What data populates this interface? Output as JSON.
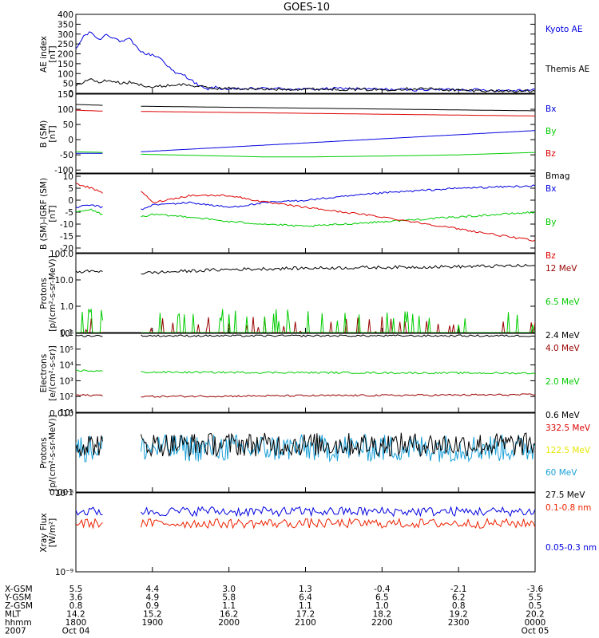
{
  "title": "GOES-10",
  "colors": {
    "black": "#000000",
    "blue": "#0000e0",
    "green": "#00cc00",
    "red": "#dd0000",
    "darkred": "#990000",
    "cyan": "#1aa0d8",
    "yellow": "#e6e600",
    "orange_red": "#ee2200"
  },
  "chart_data": [
    {
      "type": "line",
      "ylabel": "AE index\n[nT]",
      "ylim": [
        0,
        400
      ],
      "yticks": [
        "0",
        "50",
        "100",
        "150",
        "200",
        "250",
        "300",
        "350",
        "400"
      ],
      "series": [
        {
          "name": "Kyoto AE",
          "color": "#0000e0",
          "x": [
            18.0,
            18.1,
            18.2,
            18.3,
            18.4,
            18.5,
            18.6,
            18.7,
            18.8,
            18.9,
            19.0,
            19.1,
            19.2,
            19.3,
            19.4,
            19.5,
            19.6,
            19.7,
            19.8,
            20.0,
            20.5,
            21.0,
            21.5,
            22.0,
            22.5,
            23.0,
            23.5,
            24.0
          ],
          "values": [
            220,
            290,
            310,
            270,
            300,
            280,
            260,
            275,
            230,
            200,
            195,
            180,
            140,
            100,
            95,
            70,
            40,
            20,
            30,
            20,
            25,
            20,
            25,
            20,
            18,
            20,
            15,
            18
          ]
        },
        {
          "name": "Themis AE",
          "color": "#000000",
          "x": [
            18.0,
            18.1,
            18.2,
            18.3,
            18.4,
            18.5,
            18.6,
            18.7,
            18.8,
            18.9,
            19.0,
            19.2,
            19.4,
            19.6,
            19.8,
            20.0,
            20.5,
            21.0,
            21.5,
            22.0,
            22.5,
            23.0,
            23.5,
            24.0
          ],
          "values": [
            35,
            60,
            70,
            55,
            65,
            60,
            50,
            55,
            45,
            40,
            30,
            40,
            45,
            35,
            25,
            25,
            20,
            22,
            20,
            18,
            25,
            15,
            12,
            10
          ]
        }
      ]
    },
    {
      "type": "line",
      "ylabel": "B (SM)\n[nT]",
      "ylim": [
        -110,
        150
      ],
      "yticks": [
        "-100",
        "-50",
        "0",
        "50",
        "100",
        "150"
      ],
      "gaps": [
        [
          18.35,
          18.85
        ]
      ],
      "series": [
        {
          "name": "Bx",
          "color": "#0000e0",
          "x": [
            18.0,
            18.35,
            18.85,
            24.0
          ],
          "values": [
            -45,
            -45,
            -40,
            30
          ]
        },
        {
          "name": "By",
          "color": "#00cc00",
          "x": [
            18.0,
            18.35,
            18.85,
            20.5,
            21.0,
            22.0,
            23.0,
            24.0
          ],
          "values": [
            -40,
            -42,
            -48,
            -57,
            -57,
            -54,
            -50,
            -42
          ]
        },
        {
          "name": "Bz",
          "color": "#dd0000",
          "x": [
            18.0,
            18.35,
            18.85,
            24.0
          ],
          "values": [
            97,
            94,
            93,
            78
          ]
        },
        {
          "name": "Bmag",
          "color": "#000000",
          "x": [
            18.0,
            18.35,
            18.85,
            24.0
          ],
          "values": [
            116,
            113,
            110,
            95
          ]
        }
      ]
    },
    {
      "type": "line",
      "ylabel": "B (SM)-IGRF (SM)\n[nT]",
      "ylim": [
        -22,
        11
      ],
      "yticks": [
        "-20",
        "-15",
        "-10",
        "-5",
        "0",
        "5",
        "10"
      ],
      "gaps": [
        [
          18.35,
          18.85
        ]
      ],
      "series": [
        {
          "name": "Bx",
          "color": "#0000e0",
          "x": [
            18.0,
            18.2,
            18.35,
            18.85,
            19.0,
            19.5,
            20.0,
            20.5,
            21.0,
            22.0,
            23.0,
            24.0
          ],
          "values": [
            -3,
            -2,
            -3,
            -4,
            -2,
            -1,
            -3,
            -1,
            0,
            3,
            5,
            6
          ]
        },
        {
          "name": "By",
          "color": "#00cc00",
          "x": [
            18.0,
            18.2,
            18.35,
            18.85,
            19.0,
            19.5,
            20.0,
            20.5,
            21.0,
            22.0,
            23.0,
            24.0
          ],
          "values": [
            -5,
            -4,
            -6,
            -7,
            -6,
            -7,
            -9,
            -10,
            -11,
            -9,
            -7,
            -5
          ]
        },
        {
          "name": "Bz",
          "color": "#dd0000",
          "x": [
            18.0,
            18.2,
            18.35,
            18.85,
            19.0,
            19.5,
            20.0,
            20.5,
            21.0,
            22.0,
            23.0,
            24.0
          ],
          "values": [
            7,
            5,
            3,
            4,
            -1,
            2,
            2,
            -1,
            -3,
            -7,
            -12,
            -17
          ]
        }
      ]
    },
    {
      "type": "line",
      "log_scale": true,
      "ylabel": "Protons\n[p/(cm²-s-sr-MeV)]",
      "ylim": [
        0.1,
        100.0
      ],
      "yticks": [
        "0.1",
        "1.0",
        "10.0",
        "100.0"
      ],
      "gaps": [
        [
          18.35,
          18.85
        ]
      ],
      "series": [
        {
          "name": "12 MeV",
          "color": "#990000",
          "level": 0.1
        },
        {
          "name": "6.5 MeV",
          "color": "#00cc00",
          "level": 0.2
        },
        {
          "name": "2.4 MeV",
          "color": "#000000",
          "x": [
            18.0,
            18.35,
            18.85,
            20.0,
            21.0,
            22.0,
            23.0,
            24.0
          ],
          "values": [
            20,
            22,
            18,
            25,
            28,
            30,
            32,
            35
          ]
        }
      ]
    },
    {
      "type": "line",
      "log_scale": true,
      "ylabel": "Electrons\n[e/(cm²-s-sr)]",
      "ylim": [
        10,
        1000000
      ],
      "yticks": [
        "10¹",
        "10²",
        "10³",
        "10⁴",
        "10⁵",
        "10⁶"
      ],
      "gaps": [
        [
          18.35,
          18.85
        ]
      ],
      "series": [
        {
          "name": "4.0 MeV",
          "color": "#990000",
          "x": [
            18.0,
            18.35,
            18.85,
            24.0
          ],
          "values": [
            120,
            120,
            100,
            130
          ]
        },
        {
          "name": "2.0 MeV",
          "color": "#00cc00",
          "x": [
            18.0,
            18.35,
            18.85,
            24.0
          ],
          "values": [
            4500,
            4000,
            3500,
            3000
          ]
        },
        {
          "name": "0.6 MeV",
          "color": "#000000",
          "x": [
            18.0,
            18.35,
            18.85,
            24.0
          ],
          "values": [
            700000,
            700000,
            700000,
            700000
          ]
        }
      ]
    },
    {
      "type": "line",
      "log_scale": true,
      "ylabel": "Protons\n[p/(cm²-s-sr-MeV)]",
      "ylim": [
        0.001,
        0.1
      ],
      "yticks": [
        "0.001",
        "0.010"
      ],
      "gaps": [
        [
          18.35,
          18.85
        ]
      ],
      "series": [
        {
          "name": "332.5 MeV",
          "color": "#dd0000"
        },
        {
          "name": "122.5 MeV",
          "color": "#e6e600"
        },
        {
          "name": "60 MeV",
          "color": "#1aa0d8",
          "level": 0.013
        },
        {
          "name": "27.5 MeV",
          "color": "#000000",
          "level": 0.016
        }
      ]
    },
    {
      "type": "line",
      "log_scale": true,
      "ylabel": "Xray Flux\n[W/m²]",
      "ylim": [
        1e-09,
        1e-08
      ],
      "yticks": [
        "10⁻⁹",
        "10⁻⁸"
      ],
      "gaps": [
        [
          18.35,
          18.85
        ]
      ],
      "series": [
        {
          "name": "0.1-0.8 nm",
          "color": "#ee2200",
          "x": [
            18.0,
            24.0
          ],
          "values": [
            4.1e-09,
            4.1e-09
          ]
        },
        {
          "name": "0.05-0.3 nm",
          "color": "#0000e0",
          "x": [
            18.0,
            19.5,
            19.7,
            19.9,
            24.0
          ],
          "values": [
            5.8e-09,
            5.8e-09,
            6e-09,
            5.8e-09,
            5.8e-09
          ]
        }
      ]
    }
  ],
  "x_axis": {
    "row_labels": [
      "X-GSM",
      "Y-GSM",
      "Z-GSM",
      "MLT",
      "hhmm",
      "2007"
    ],
    "columns": [
      {
        "t": 18.0,
        "values": [
          "5.5",
          "3.6",
          "0.8",
          "14.2",
          "1800",
          "Oct 04"
        ]
      },
      {
        "t": 19.0,
        "values": [
          "4.4",
          "4.9",
          "0.9",
          "15.2",
          "1900",
          ""
        ]
      },
      {
        "t": 20.0,
        "values": [
          "3.0",
          "5.8",
          "1.1",
          "16.2",
          "2000",
          ""
        ]
      },
      {
        "t": 21.0,
        "values": [
          "1.3",
          "6.4",
          "1.1",
          "17.2",
          "2100",
          ""
        ]
      },
      {
        "t": 22.0,
        "values": [
          "-0.4",
          "6.5",
          "1.0",
          "18.2",
          "2200",
          ""
        ]
      },
      {
        "t": 23.0,
        "values": [
          "-2.1",
          "6.2",
          "0.8",
          "19.2",
          "2300",
          ""
        ]
      },
      {
        "t": 24.0,
        "values": [
          "-3.6",
          "5.5",
          "0.5",
          "20.2",
          "0000",
          "Oct 05"
        ]
      }
    ]
  }
}
